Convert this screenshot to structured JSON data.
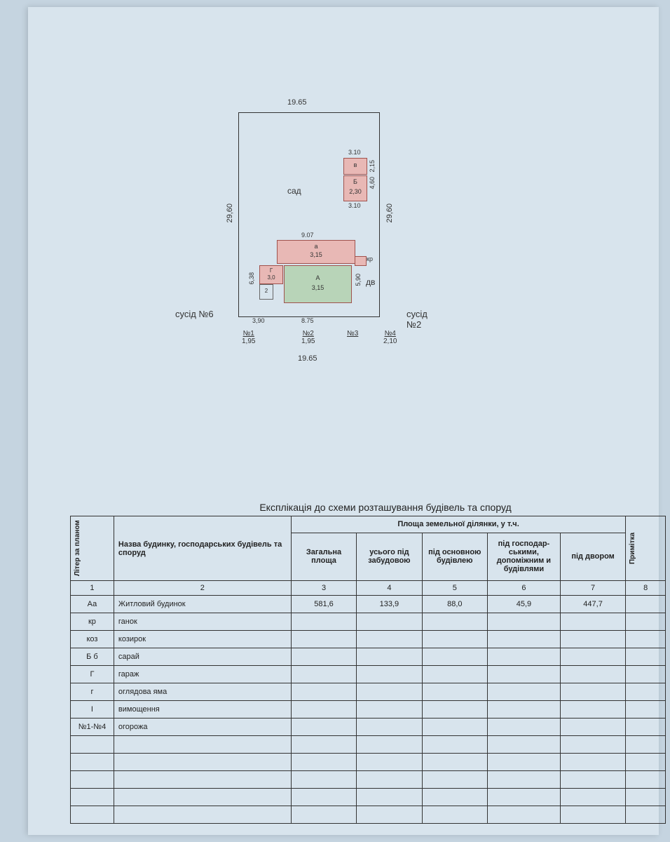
{
  "diagram": {
    "top_width": "19.65",
    "bottom_width": "19.65",
    "left_height": "29,60",
    "right_height": "29,60",
    "garden_label": "сад",
    "yard_label": "дв",
    "neighbor_left": "сусід №6",
    "neighbor_right": "сусід №2",
    "dim_907": "9.07",
    "dim_638": "6,38",
    "dim_390": "3,90",
    "dim_875": "8.75",
    "dim_590": "5,90",
    "dim_310_top": "3.10",
    "dim_310_bot": "3.10",
    "dim_460": "4,60",
    "dim_215": "2,15",
    "bldg_a_letter": "А",
    "bldg_a_dim": "3,15",
    "bldg_a2_letter": "а",
    "bldg_a2_dim": "3,15",
    "bldg_b_letter": "Б",
    "bldg_b_dim": "2,30",
    "bldg_v_letter": "в",
    "bldg_g_small": "Г",
    "bldg_g_dim": "3,0",
    "bldg_2": "2",
    "kr_label": "кр",
    "fence_n1": "№1",
    "fence_n1_dim": "1,95",
    "fence_n2": "№2",
    "fence_n2_dim": "1,95",
    "fence_n3": "№3",
    "fence_n4": "№4",
    "fence_n4_dim": "2,10",
    "colors": {
      "pink": "#e8b8b5",
      "green": "#b8d4b8",
      "border": "#a0524d",
      "line": "#333333"
    }
  },
  "table": {
    "title": "Експлікація до схеми розташування будівель та споруд",
    "header": {
      "liter": "Літер за планом",
      "name": "Назва будинку, господарських будівель та споруд",
      "area_group": "Площа земельної ділянки, у т.ч.",
      "total": "Загальна площа",
      "under_dev": "усього під забудовою",
      "main": "під основною будівлею",
      "aux": "під господар-ськими, допоміжним и будівлями",
      "yard": "під двором",
      "note": "Примітка"
    },
    "num_row": [
      "1",
      "2",
      "3",
      "4",
      "5",
      "6",
      "7",
      "8"
    ],
    "rows": [
      {
        "liter": "Аа",
        "name": "Житловий будинок",
        "c3": "581,6",
        "c4": "133,9",
        "c5": "88,0",
        "c6": "45,9",
        "c7": "447,7",
        "c8": ""
      },
      {
        "liter": "кр",
        "name": "ганок",
        "c3": "",
        "c4": "",
        "c5": "",
        "c6": "",
        "c7": "",
        "c8": ""
      },
      {
        "liter": "коз",
        "name": "козирок",
        "c3": "",
        "c4": "",
        "c5": "",
        "c6": "",
        "c7": "",
        "c8": ""
      },
      {
        "liter": "Б б",
        "name": "сарай",
        "c3": "",
        "c4": "",
        "c5": "",
        "c6": "",
        "c7": "",
        "c8": ""
      },
      {
        "liter": "Г",
        "name": "гараж",
        "c3": "",
        "c4": "",
        "c5": "",
        "c6": "",
        "c7": "",
        "c8": ""
      },
      {
        "liter": "г",
        "name": "оглядова яма",
        "c3": "",
        "c4": "",
        "c5": "",
        "c6": "",
        "c7": "",
        "c8": ""
      },
      {
        "liter": "І",
        "name": "вимощення",
        "c3": "",
        "c4": "",
        "c5": "",
        "c6": "",
        "c7": "",
        "c8": ""
      },
      {
        "liter": "№1-№4",
        "name": "огорожа",
        "c3": "",
        "c4": "",
        "c5": "",
        "c6": "",
        "c7": "",
        "c8": ""
      }
    ],
    "empty_rows": 5
  }
}
